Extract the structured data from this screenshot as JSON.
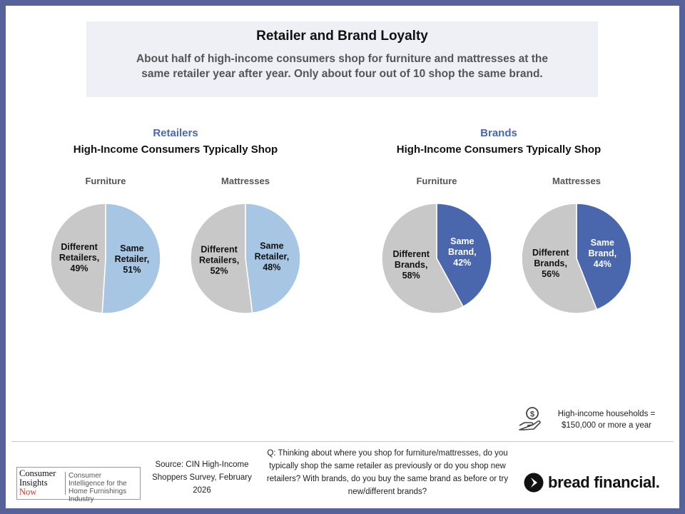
{
  "header": {
    "title": "Retailer and Brand Loyalty",
    "subtitle": "About half of high-income consumers shop for furniture and mattresses at the same retailer year after year. Only about four out of 10 shop the same brand."
  },
  "sections": [
    {
      "title": "Retailers",
      "subtitle": "High-Income Consumers Typically Shop"
    },
    {
      "title": "Brands",
      "subtitle": "High-Income Consumers Typically Shop"
    }
  ],
  "chart_data": [
    {
      "type": "pie",
      "group": "Retailers",
      "title": "Furniture",
      "slices": [
        {
          "label_lines": [
            "Same",
            "Retailer,",
            "51%"
          ],
          "value": 51,
          "color": "#a7c6e3"
        },
        {
          "label_lines": [
            "Different",
            "Retailers,",
            "49%"
          ],
          "value": 49,
          "color": "#c8c8c8"
        }
      ]
    },
    {
      "type": "pie",
      "group": "Retailers",
      "title": "Mattresses",
      "slices": [
        {
          "label_lines": [
            "Same",
            "Retailer,",
            "48%"
          ],
          "value": 48,
          "color": "#a7c6e3"
        },
        {
          "label_lines": [
            "Different",
            "Retailers,",
            "52%"
          ],
          "value": 52,
          "color": "#c8c8c8"
        }
      ]
    },
    {
      "type": "pie",
      "group": "Brands",
      "title": "Furniture",
      "slices": [
        {
          "label_lines": [
            "Same",
            "Brand,",
            "42%"
          ],
          "value": 42,
          "color": "#4a67ae"
        },
        {
          "label_lines": [
            "Different",
            "Brands,",
            "58%"
          ],
          "value": 58,
          "color": "#c8c8c8"
        }
      ]
    },
    {
      "type": "pie",
      "group": "Brands",
      "title": "Mattresses",
      "slices": [
        {
          "label_lines": [
            "Same",
            "Brand,",
            "44%"
          ],
          "value": 44,
          "color": "#4a67ae"
        },
        {
          "label_lines": [
            "Different",
            "Brands,",
            "56%"
          ],
          "value": 56,
          "color": "#c8c8c8"
        }
      ]
    }
  ],
  "legend": {
    "icon": "money-hand-icon",
    "line1": "High-income households =",
    "line2": "$150,000 or more a year"
  },
  "footer": {
    "cin_logo": {
      "line1": "Consumer",
      "line2": "Insights",
      "line3": "Now",
      "tagline": "Consumer Intelligence for the Home Furnishings Industry"
    },
    "source": "Source: CIN High-Income Shoppers Survey, February 2026",
    "question": "Q: Thinking about where you shop for furniture/mattresses, do you typically shop the same retailer as previously or do you shop new retailers? With brands, do you buy the same brand as before or try new/different brands?",
    "bread_logo": "bread financial."
  },
  "colors": {
    "border": "#56639a",
    "retail_same": "#a7c6e3",
    "brand_same": "#4a67ae",
    "different": "#c8c8c8",
    "header_bg": "#eff0f5"
  }
}
